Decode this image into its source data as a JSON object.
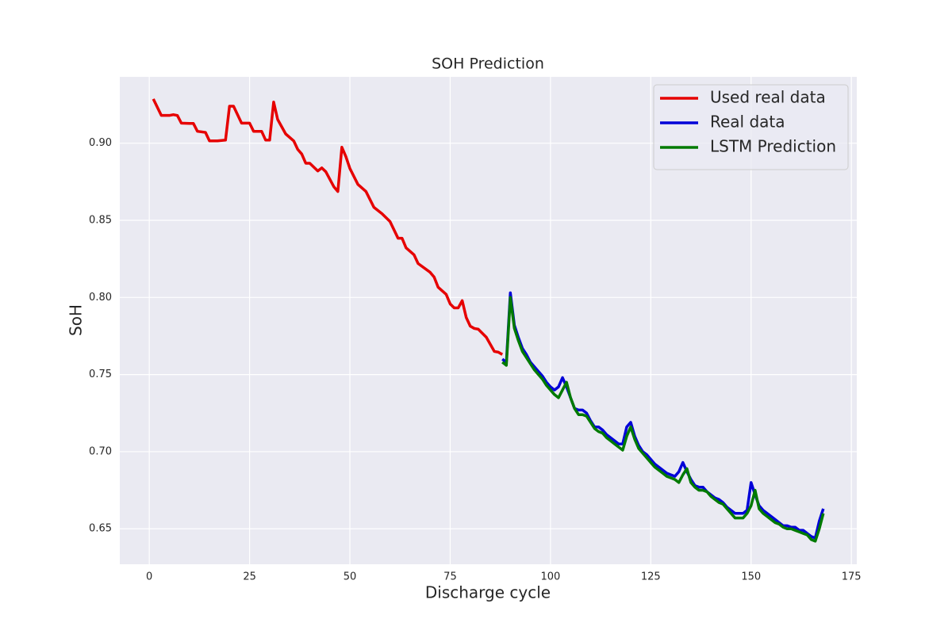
{
  "chart_data": {
    "type": "line",
    "title": "SOH Prediction",
    "x_label": "Discharge cycle",
    "y_label": "SoH",
    "xlim": [
      -7.35,
      176.35
    ],
    "ylim": [
      0.627,
      0.943
    ],
    "xticks": [
      0,
      25,
      50,
      75,
      100,
      125,
      150,
      175
    ],
    "yticks": [
      0.65,
      {
        "value": 0.7,
        "label": "0.70"
      },
      0.75,
      {
        "value": 0.8,
        "label": "0.80"
      },
      0.85,
      {
        "value": 0.9,
        "label": "0.90"
      }
    ],
    "grid": true,
    "legend": "upper right",
    "series": [
      {
        "name": "Used real data",
        "color": "#e60000",
        "x": [
          1,
          3,
          5,
          6,
          7,
          8,
          10,
          11,
          12,
          14,
          15,
          17,
          19,
          20,
          21,
          23,
          25,
          26,
          28,
          29,
          30,
          31,
          32,
          34,
          36,
          37,
          38,
          39,
          40,
          42,
          43,
          44,
          46,
          47,
          48,
          49,
          50,
          52,
          54,
          56,
          58,
          60,
          62,
          63,
          64,
          66,
          67,
          70,
          71,
          72,
          74,
          75,
          76,
          77,
          78,
          79,
          80,
          81,
          82,
          84,
          86,
          87,
          88
        ],
        "values": [
          0.9287,
          0.918,
          0.918,
          0.9185,
          0.918,
          0.913,
          0.9128,
          0.9128,
          0.9077,
          0.907,
          0.9015,
          0.9015,
          0.902,
          0.924,
          0.924,
          0.913,
          0.913,
          0.9077,
          0.9077,
          0.902,
          0.902,
          0.9267,
          0.9154,
          0.906,
          0.9015,
          0.896,
          0.893,
          0.887,
          0.887,
          0.882,
          0.884,
          0.8815,
          0.8718,
          0.8687,
          0.8974,
          0.8913,
          0.8836,
          0.8733,
          0.8687,
          0.8584,
          0.8543,
          0.8492,
          0.8384,
          0.8384,
          0.8322,
          0.8276,
          0.822,
          0.8163,
          0.8132,
          0.8066,
          0.802,
          0.7958,
          0.7932,
          0.7932,
          0.7979,
          0.787,
          0.7814,
          0.7799,
          0.7794,
          0.7742,
          0.765,
          0.7645,
          0.763
        ]
      },
      {
        "name": "Real data",
        "color": "#0000d8",
        "x": [
          88,
          89,
          90,
          91,
          92,
          93,
          94,
          95,
          96,
          97,
          98,
          99,
          100,
          101,
          102,
          103,
          104,
          105,
          106,
          107,
          108,
          109,
          110,
          111,
          112,
          113,
          114,
          115,
          116,
          117,
          118,
          119,
          120,
          121,
          122,
          123,
          124,
          125,
          126,
          127,
          128,
          129,
          130,
          131,
          132,
          133,
          134,
          135,
          136,
          137,
          138,
          139,
          140,
          141,
          142,
          143,
          144,
          145,
          146,
          147,
          148,
          149,
          150,
          151,
          152,
          153,
          154,
          155,
          156,
          157,
          158,
          159,
          160,
          161,
          162,
          163,
          164,
          165,
          166,
          167,
          168
        ],
        "values": [
          0.76,
          0.758,
          0.803,
          0.782,
          0.774,
          0.767,
          0.763,
          0.758,
          0.755,
          0.752,
          0.749,
          0.745,
          0.742,
          0.74,
          0.742,
          0.748,
          0.742,
          0.735,
          0.728,
          0.727,
          0.727,
          0.725,
          0.72,
          0.716,
          0.716,
          0.714,
          0.711,
          0.709,
          0.707,
          0.705,
          0.705,
          0.716,
          0.719,
          0.71,
          0.704,
          0.7,
          0.698,
          0.695,
          0.692,
          0.69,
          0.688,
          0.686,
          0.685,
          0.684,
          0.687,
          0.693,
          0.687,
          0.682,
          0.678,
          0.677,
          0.677,
          0.674,
          0.672,
          0.67,
          0.669,
          0.667,
          0.664,
          0.662,
          0.66,
          0.66,
          0.66,
          0.662,
          0.68,
          0.672,
          0.665,
          0.662,
          0.66,
          0.658,
          0.656,
          0.654,
          0.652,
          0.652,
          0.651,
          0.651,
          0.649,
          0.649,
          0.647,
          0.645,
          0.644,
          0.655,
          0.663
        ]
      },
      {
        "name": "LSTM Prediction",
        "color": "#007a00",
        "x": [
          88,
          89,
          90,
          91,
          92,
          93,
          94,
          95,
          96,
          97,
          98,
          99,
          100,
          101,
          102,
          103,
          104,
          105,
          106,
          107,
          108,
          109,
          110,
          111,
          112,
          113,
          114,
          115,
          116,
          117,
          118,
          119,
          120,
          121,
          122,
          123,
          124,
          125,
          126,
          127,
          128,
          129,
          130,
          131,
          132,
          133,
          134,
          135,
          136,
          137,
          138,
          139,
          140,
          141,
          142,
          143,
          144,
          145,
          146,
          147,
          148,
          149,
          150,
          151,
          152,
          153,
          154,
          155,
          156,
          157,
          158,
          159,
          160,
          161,
          162,
          163,
          164,
          165,
          166,
          167,
          168
        ],
        "values": [
          0.758,
          0.756,
          0.8,
          0.78,
          0.772,
          0.765,
          0.761,
          0.757,
          0.753,
          0.75,
          0.747,
          0.743,
          0.74,
          0.737,
          0.735,
          0.74,
          0.745,
          0.735,
          0.728,
          0.724,
          0.724,
          0.723,
          0.719,
          0.715,
          0.713,
          0.712,
          0.709,
          0.707,
          0.705,
          0.703,
          0.701,
          0.71,
          0.716,
          0.708,
          0.702,
          0.699,
          0.696,
          0.693,
          0.69,
          0.688,
          0.686,
          0.684,
          0.683,
          0.682,
          0.68,
          0.685,
          0.689,
          0.68,
          0.677,
          0.675,
          0.675,
          0.674,
          0.671,
          0.669,
          0.667,
          0.666,
          0.663,
          0.66,
          0.657,
          0.657,
          0.657,
          0.66,
          0.665,
          0.675,
          0.663,
          0.66,
          0.658,
          0.656,
          0.654,
          0.653,
          0.651,
          0.65,
          0.65,
          0.649,
          0.648,
          0.647,
          0.646,
          0.643,
          0.642,
          0.65,
          0.66
        ]
      }
    ]
  }
}
